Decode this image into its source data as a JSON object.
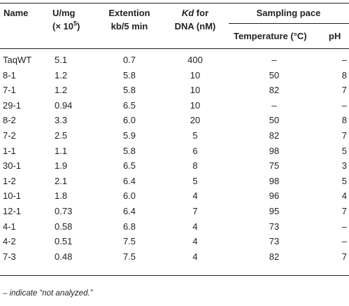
{
  "headers": {
    "name": "Name",
    "umg_line1": "U/mg",
    "umg_line2_pre": "(× 10",
    "umg_line2_sup": "5",
    "umg_line2_post": ")",
    "ext_line1": "Extention",
    "ext_line2": "kb/5 min",
    "kd_italic": "Kd",
    "kd_rest": " for",
    "kd_line2": "DNA (nM)",
    "sampling": "Sampling pace",
    "temperature": "Temperature (°C)",
    "ph": "pH"
  },
  "rows": [
    {
      "name": "TaqWT",
      "umg": "5.1",
      "ext": "0.7",
      "kd": "400",
      "temp": "–",
      "ph": "–"
    },
    {
      "name": "8-1",
      "umg": "1.2",
      "ext": "5.8",
      "kd": "10",
      "temp": "50",
      "ph": "8"
    },
    {
      "name": "7-1",
      "umg": "1.2",
      "ext": "5.8",
      "kd": "10",
      "temp": "82",
      "ph": "7"
    },
    {
      "name": "29-1",
      "umg": "0.94",
      "ext": "6.5",
      "kd": "10",
      "temp": "–",
      "ph": "–"
    },
    {
      "name": "8-2",
      "umg": "3.3",
      "ext": "6.0",
      "kd": "20",
      "temp": "50",
      "ph": "8"
    },
    {
      "name": "7-2",
      "umg": "2.5",
      "ext": "5.9",
      "kd": "5",
      "temp": "82",
      "ph": "7"
    },
    {
      "name": "1-1",
      "umg": "1.1",
      "ext": "5.8",
      "kd": "6",
      "temp": "98",
      "ph": "5"
    },
    {
      "name": "30-1",
      "umg": "1.9",
      "ext": "6.5",
      "kd": "8",
      "temp": "75",
      "ph": "3"
    },
    {
      "name": "1-2",
      "umg": "2.1",
      "ext": "6.4",
      "kd": "5",
      "temp": "98",
      "ph": "5"
    },
    {
      "name": "10-1",
      "umg": "1.8",
      "ext": "6.0",
      "kd": "4",
      "temp": "96",
      "ph": "4"
    },
    {
      "name": "12-1",
      "umg": "0.73",
      "ext": "6.4",
      "kd": "7",
      "temp": "95",
      "ph": "7"
    },
    {
      "name": "4-1",
      "umg": "0.58",
      "ext": "6.8",
      "kd": "4",
      "temp": "73",
      "ph": "–"
    },
    {
      "name": "4-2",
      "umg": "0.51",
      "ext": "7.5",
      "kd": "4",
      "temp": "73",
      "ph": "–"
    },
    {
      "name": "7-3",
      "umg": "0.48",
      "ext": "7.5",
      "kd": "4",
      "temp": "82",
      "ph": "7"
    }
  ],
  "footnote": "– indicate “not analyzed.”"
}
